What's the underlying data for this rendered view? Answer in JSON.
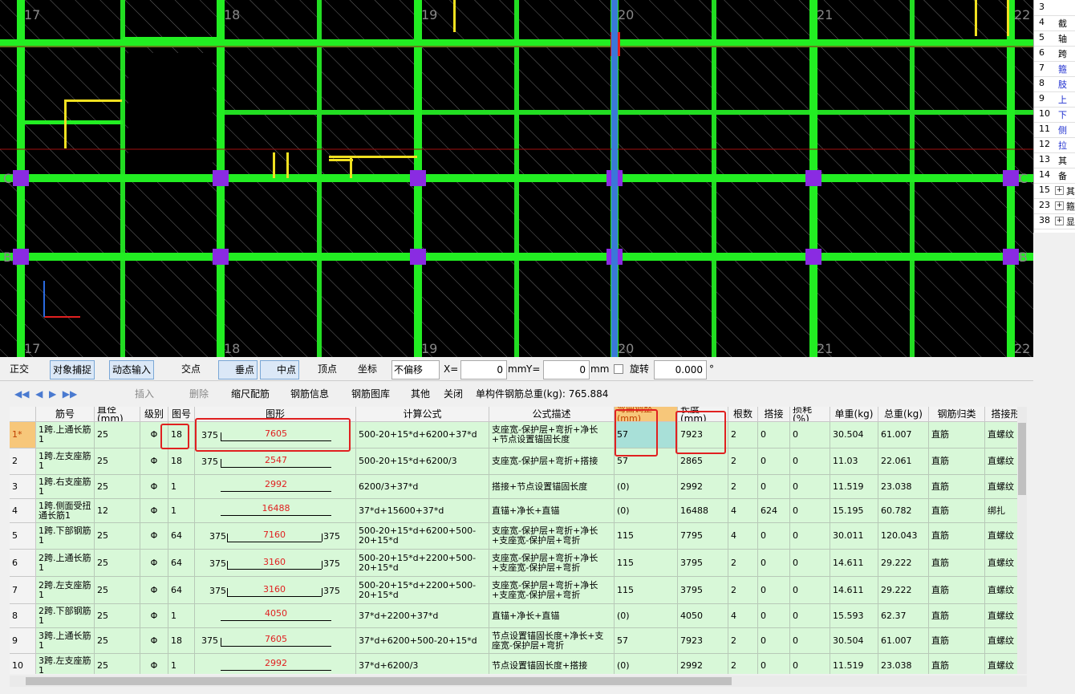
{
  "canvas": {
    "axes_top": [
      "17",
      "18",
      "19",
      "20",
      "21",
      "22"
    ],
    "axes_bottom": [
      "17",
      "18",
      "19",
      "20",
      "21",
      "22"
    ],
    "rows": [
      "C",
      "B"
    ]
  },
  "toolbar": {
    "ortho": "正交",
    "snap": "对象捕捉",
    "dynamic": "动态输入",
    "intersection": "交点",
    "perpendicular": "垂点",
    "midpoint": "中点",
    "vertex": "顶点",
    "coordinate": "坐标",
    "offset": "不偏移",
    "x_label": "X=",
    "x_value": "0",
    "x_unit": "mm",
    "y_label": "Y=",
    "y_value": "0",
    "y_unit": "mm",
    "rotate": "旋转",
    "rotate_value": "0.000",
    "degree": "°"
  },
  "rebar_toolbar": {
    "insert": "插入",
    "delete": "删除",
    "scale": "缩尺配筋",
    "info": "钢筋信息",
    "library": "钢筋图库",
    "other": "其他",
    "close": "关闭",
    "total": "单构件钢筋总重(kg): 765.884"
  },
  "table": {
    "columns": [
      "筋号",
      "直径(mm)",
      "级别",
      "图号",
      "图形",
      "计算公式",
      "公式描述",
      "弯曲调整(mm)",
      "长度(mm)",
      "根数",
      "搭接",
      "损耗(%)",
      "单重(kg)",
      "总重(kg)",
      "钢筋归类",
      "搭接形"
    ],
    "rows": [
      {
        "id": "1*",
        "cells": [
          "1跨.上通长筋1",
          "25",
          "Φ",
          "18",
          {
            "left": "375",
            "length": "7605"
          },
          "500-20+15*d+6200+37*d",
          "支座宽-保护层+弯折+净长+节点设置锚固长度",
          "57",
          "7923",
          "2",
          "0",
          "0",
          "30.504",
          "61.007",
          "直筋",
          "直螺纹"
        ]
      },
      {
        "id": "2",
        "cells": [
          "1跨.左支座筋1",
          "25",
          "Φ",
          "18",
          {
            "left": "375",
            "length": "2547"
          },
          "500-20+15*d+6200/3",
          "支座宽-保护层+弯折+搭接",
          "57",
          "2865",
          "2",
          "0",
          "0",
          "11.03",
          "22.061",
          "直筋",
          "直螺纹"
        ]
      },
      {
        "id": "3",
        "cells": [
          "1跨.右支座筋1",
          "25",
          "Φ",
          "1",
          {
            "length": "2992"
          },
          "6200/3+37*d",
          "搭接+节点设置锚固长度",
          "(0)",
          "2992",
          "2",
          "0",
          "0",
          "11.519",
          "23.038",
          "直筋",
          "直螺纹"
        ]
      },
      {
        "id": "4",
        "cells": [
          "1跨.侧面受扭通长筋1",
          "12",
          "Φ",
          "1",
          {
            "length": "16488"
          },
          "37*d+15600+37*d",
          "直锚+净长+直锚",
          "(0)",
          "16488",
          "4",
          "624",
          "0",
          "15.195",
          "60.782",
          "直筋",
          "绑扎"
        ]
      },
      {
        "id": "5",
        "cells": [
          "1跨.下部钢筋1",
          "25",
          "Φ",
          "64",
          {
            "left": "375",
            "length": "7160",
            "right": "375"
          },
          "500-20+15*d+6200+500-20+15*d",
          "支座宽-保护层+弯折+净长+支座宽-保护层+弯折",
          "115",
          "7795",
          "4",
          "0",
          "0",
          "30.011",
          "120.043",
          "直筋",
          "直螺纹"
        ]
      },
      {
        "id": "6",
        "cells": [
          "2跨.上通长筋1",
          "25",
          "Φ",
          "64",
          {
            "left": "375",
            "length": "3160",
            "right": "375"
          },
          "500-20+15*d+2200+500-20+15*d",
          "支座宽-保护层+弯折+净长+支座宽-保护层+弯折",
          "115",
          "3795",
          "2",
          "0",
          "0",
          "14.611",
          "29.222",
          "直筋",
          "直螺纹"
        ]
      },
      {
        "id": "7",
        "cells": [
          "2跨.左支座筋1",
          "25",
          "Φ",
          "64",
          {
            "left": "375",
            "length": "3160",
            "right": "375"
          },
          "500-20+15*d+2200+500-20+15*d",
          "支座宽-保护层+弯折+净长+支座宽-保护层+弯折",
          "115",
          "3795",
          "2",
          "0",
          "0",
          "14.611",
          "29.222",
          "直筋",
          "直螺纹"
        ]
      },
      {
        "id": "8",
        "cells": [
          "2跨.下部钢筋1",
          "25",
          "Φ",
          "1",
          {
            "length": "4050"
          },
          "37*d+2200+37*d",
          "直锚+净长+直锚",
          "(0)",
          "4050",
          "4",
          "0",
          "0",
          "15.593",
          "62.37",
          "直筋",
          "直螺纹"
        ]
      },
      {
        "id": "9",
        "cells": [
          "3跨.上通长筋1",
          "25",
          "Φ",
          "18",
          {
            "left": "375",
            "length": "7605"
          },
          "37*d+6200+500-20+15*d",
          "节点设置锚固长度+净长+支座宽-保护层+弯折",
          "57",
          "7923",
          "2",
          "0",
          "0",
          "30.504",
          "61.007",
          "直筋",
          "直螺纹"
        ]
      },
      {
        "id": "10",
        "cells": [
          "3跨.左支座筋1",
          "25",
          "Φ",
          "1",
          {
            "length": "2992"
          },
          "37*d+6200/3",
          "节点设置锚固长度+搭接",
          "(0)",
          "2992",
          "2",
          "0",
          "0",
          "11.519",
          "23.038",
          "直筋",
          "直螺纹"
        ]
      }
    ]
  },
  "side_panel": {
    "rows": [
      {
        "num": "3"
      },
      {
        "num": "4",
        "label": "截"
      },
      {
        "num": "5",
        "label": "轴"
      },
      {
        "num": "6",
        "label": "跨"
      },
      {
        "num": "7",
        "label": "箍"
      },
      {
        "num": "8",
        "label": "肢"
      },
      {
        "num": "9",
        "label": "上"
      },
      {
        "num": "10",
        "label": "下"
      },
      {
        "num": "11",
        "label": "侧"
      },
      {
        "num": "12",
        "label": "拉"
      },
      {
        "num": "13",
        "label": "其"
      },
      {
        "num": "14",
        "label": "备"
      },
      {
        "num": "15",
        "label": "其"
      },
      {
        "num": "23",
        "label": "箍"
      },
      {
        "num": "38",
        "label": "显"
      }
    ]
  }
}
